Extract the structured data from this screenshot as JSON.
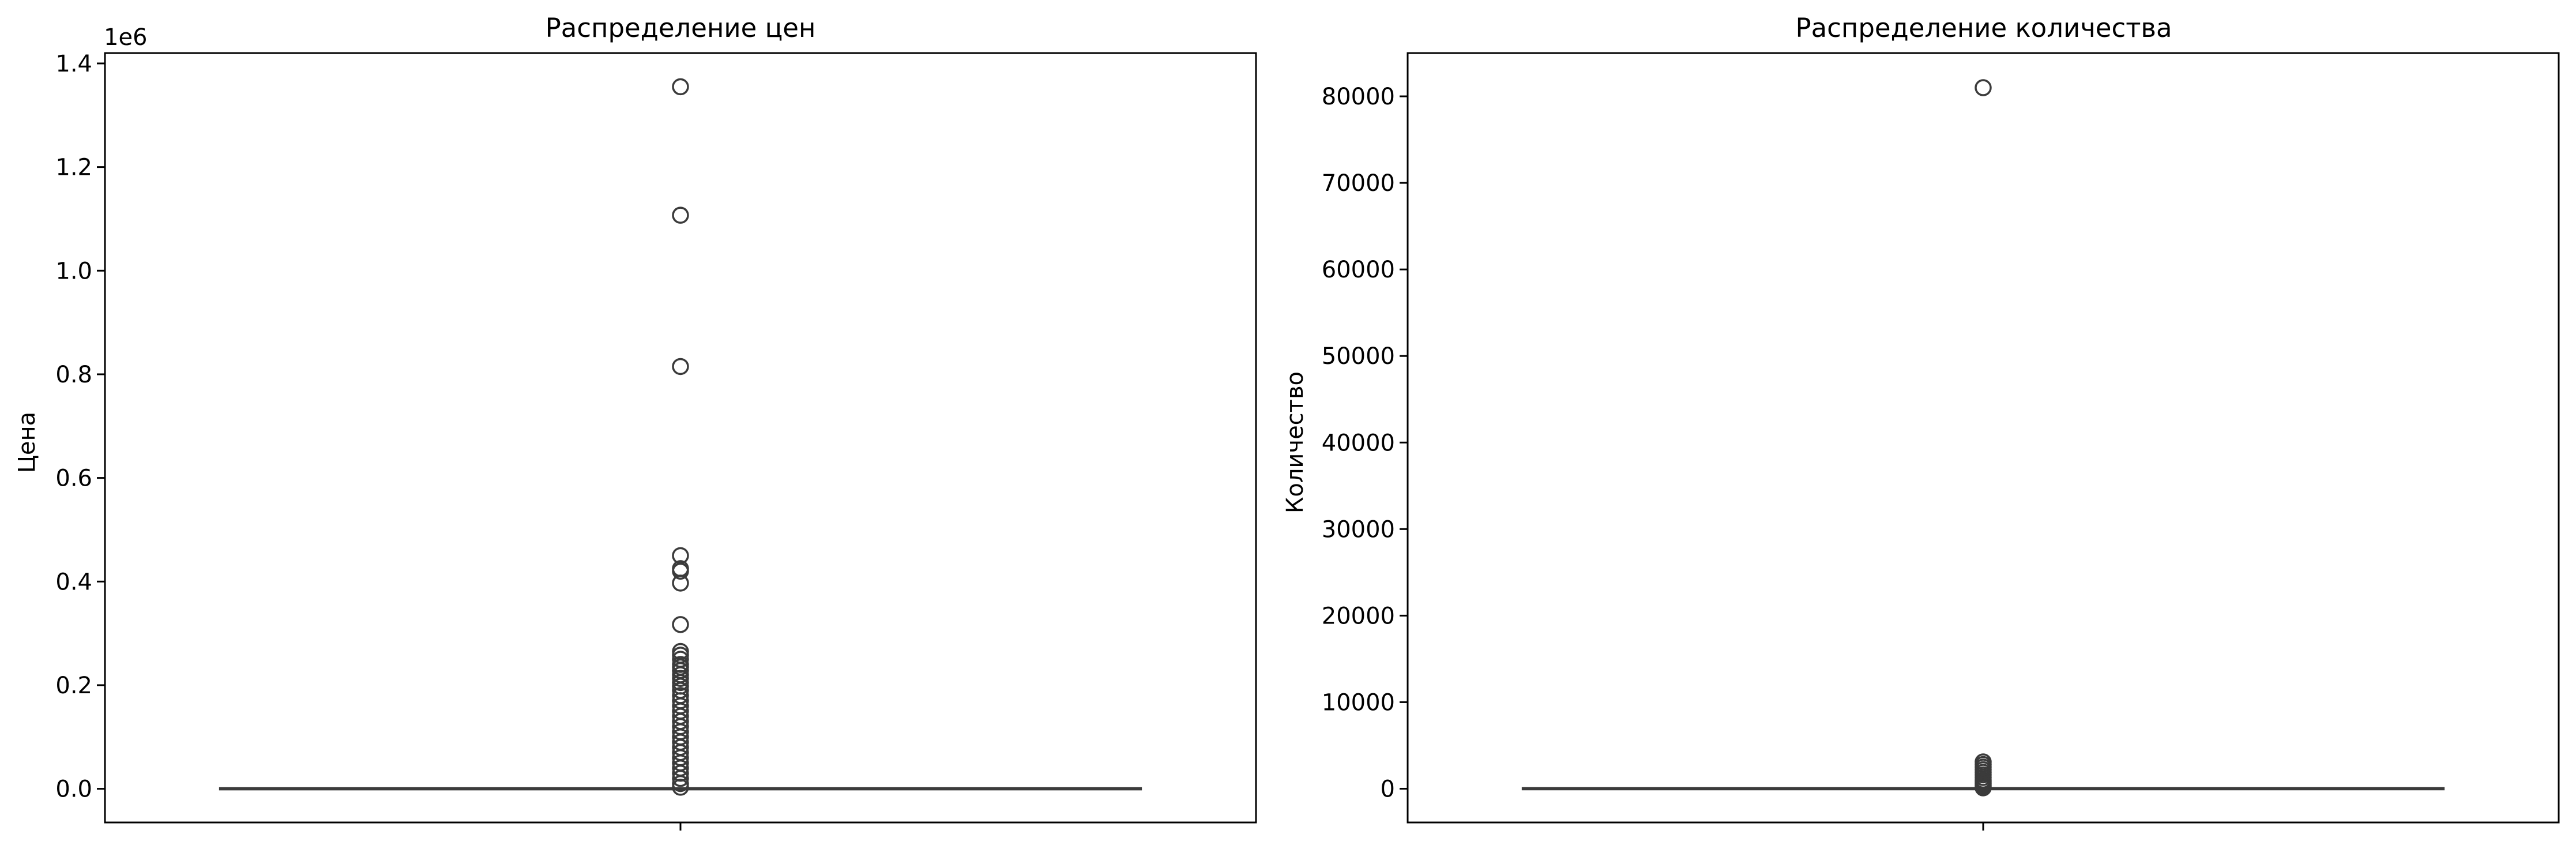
{
  "chart_data": [
    {
      "type": "box",
      "title": "Распределение цен",
      "xlabel": "",
      "ylabel": "Цена",
      "y_offset_text": "1e6",
      "ylim": [
        -0.065,
        1.42
      ],
      "yticks": [
        0.0,
        0.2,
        0.4,
        0.6,
        0.8,
        1.0,
        1.2,
        1.4
      ],
      "ytick_labels": [
        "0.0",
        "0.2",
        "0.4",
        "0.6",
        "0.8",
        "1.0",
        "1.2",
        "1.4"
      ],
      "box": {
        "q1": 0.0,
        "median": 0.0,
        "q3": 0.0,
        "whisker_low": 0.0,
        "whisker_high": 0.001
      },
      "outliers": [
        1.355,
        1.107,
        0.815,
        0.45,
        0.425,
        0.42,
        0.397,
        0.317,
        0.265,
        0.258,
        0.25,
        0.24,
        0.235,
        0.228,
        0.22,
        0.213,
        0.205,
        0.198,
        0.19,
        0.18,
        0.17,
        0.16,
        0.15,
        0.14,
        0.13,
        0.12,
        0.11,
        0.1,
        0.09,
        0.08,
        0.07,
        0.06,
        0.05,
        0.04,
        0.03,
        0.02,
        0.01,
        0.003
      ],
      "colors": {
        "box": "#3b3b3b",
        "outlier_edge": "#3b3b3b"
      }
    },
    {
      "type": "box",
      "title": "Распределение количества",
      "xlabel": "",
      "ylabel": "Количество",
      "ylim": [
        -3900,
        85000
      ],
      "yticks": [
        0,
        10000,
        20000,
        30000,
        40000,
        50000,
        60000,
        70000,
        80000
      ],
      "ytick_labels": [
        "0",
        "10000",
        "20000",
        "30000",
        "40000",
        "50000",
        "60000",
        "70000",
        "80000"
      ],
      "box": {
        "q1": 0,
        "median": 0,
        "q3": 0,
        "whisker_low": 0,
        "whisker_high": 20
      },
      "outliers": [
        81000,
        3100,
        2800,
        2500,
        2200,
        1900,
        1600,
        1300,
        1000,
        800,
        600,
        400,
        200,
        100
      ],
      "colors": {
        "box": "#3b3b3b",
        "outlier_edge": "#3b3b3b"
      }
    }
  ]
}
